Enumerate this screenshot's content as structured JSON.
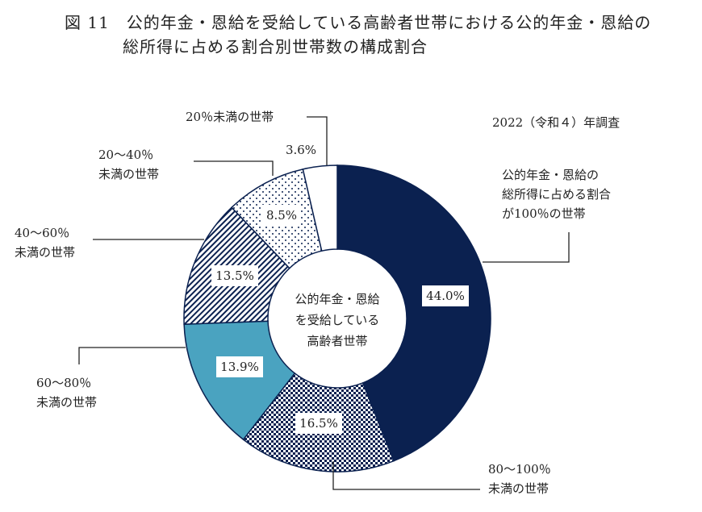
{
  "title": {
    "line1": "図 11　公的年金・恩給を受給している高齢者世帯における公的年金・恩給の",
    "line2": "総所得に占める割合別世帯数の構成割合"
  },
  "survey_note": "2022（令和４）年調査",
  "chart_data": {
    "type": "pie",
    "donut": true,
    "center_label": [
      "公的年金・恩給",
      "を受給している",
      "高齢者世帯"
    ],
    "start": "top",
    "direction": "clockwise",
    "unit": "%",
    "slices": [
      {
        "category": [
          "公的年金・恩給の",
          "総所得に占める割合",
          "が100％の世帯"
        ],
        "value": 44.0,
        "label": "44.0%",
        "fill": "#0b2150",
        "pattern": "solid"
      },
      {
        "category": [
          "80～100％",
          "未満の世帯"
        ],
        "value": 16.5,
        "label": "16.5%",
        "fill": "#0b2150",
        "pattern": "checker"
      },
      {
        "category": [
          "60～80％",
          "未満の世帯"
        ],
        "value": 13.9,
        "label": "13.9%",
        "fill": "#4aa3c0",
        "pattern": "solid"
      },
      {
        "category": [
          "40～60％",
          "未満の世帯"
        ],
        "value": 13.5,
        "label": "13.5%",
        "fill": "#0b2150",
        "pattern": "diagonal-stripes"
      },
      {
        "category": [
          "20～40％",
          "未満の世帯"
        ],
        "value": 8.5,
        "label": "8.5%",
        "fill": "#0b2150",
        "pattern": "dots"
      },
      {
        "category": [
          "20％未満の世帯"
        ],
        "value": 3.6,
        "label": "3.6%",
        "fill": "#ffffff",
        "pattern": "solid"
      }
    ]
  }
}
